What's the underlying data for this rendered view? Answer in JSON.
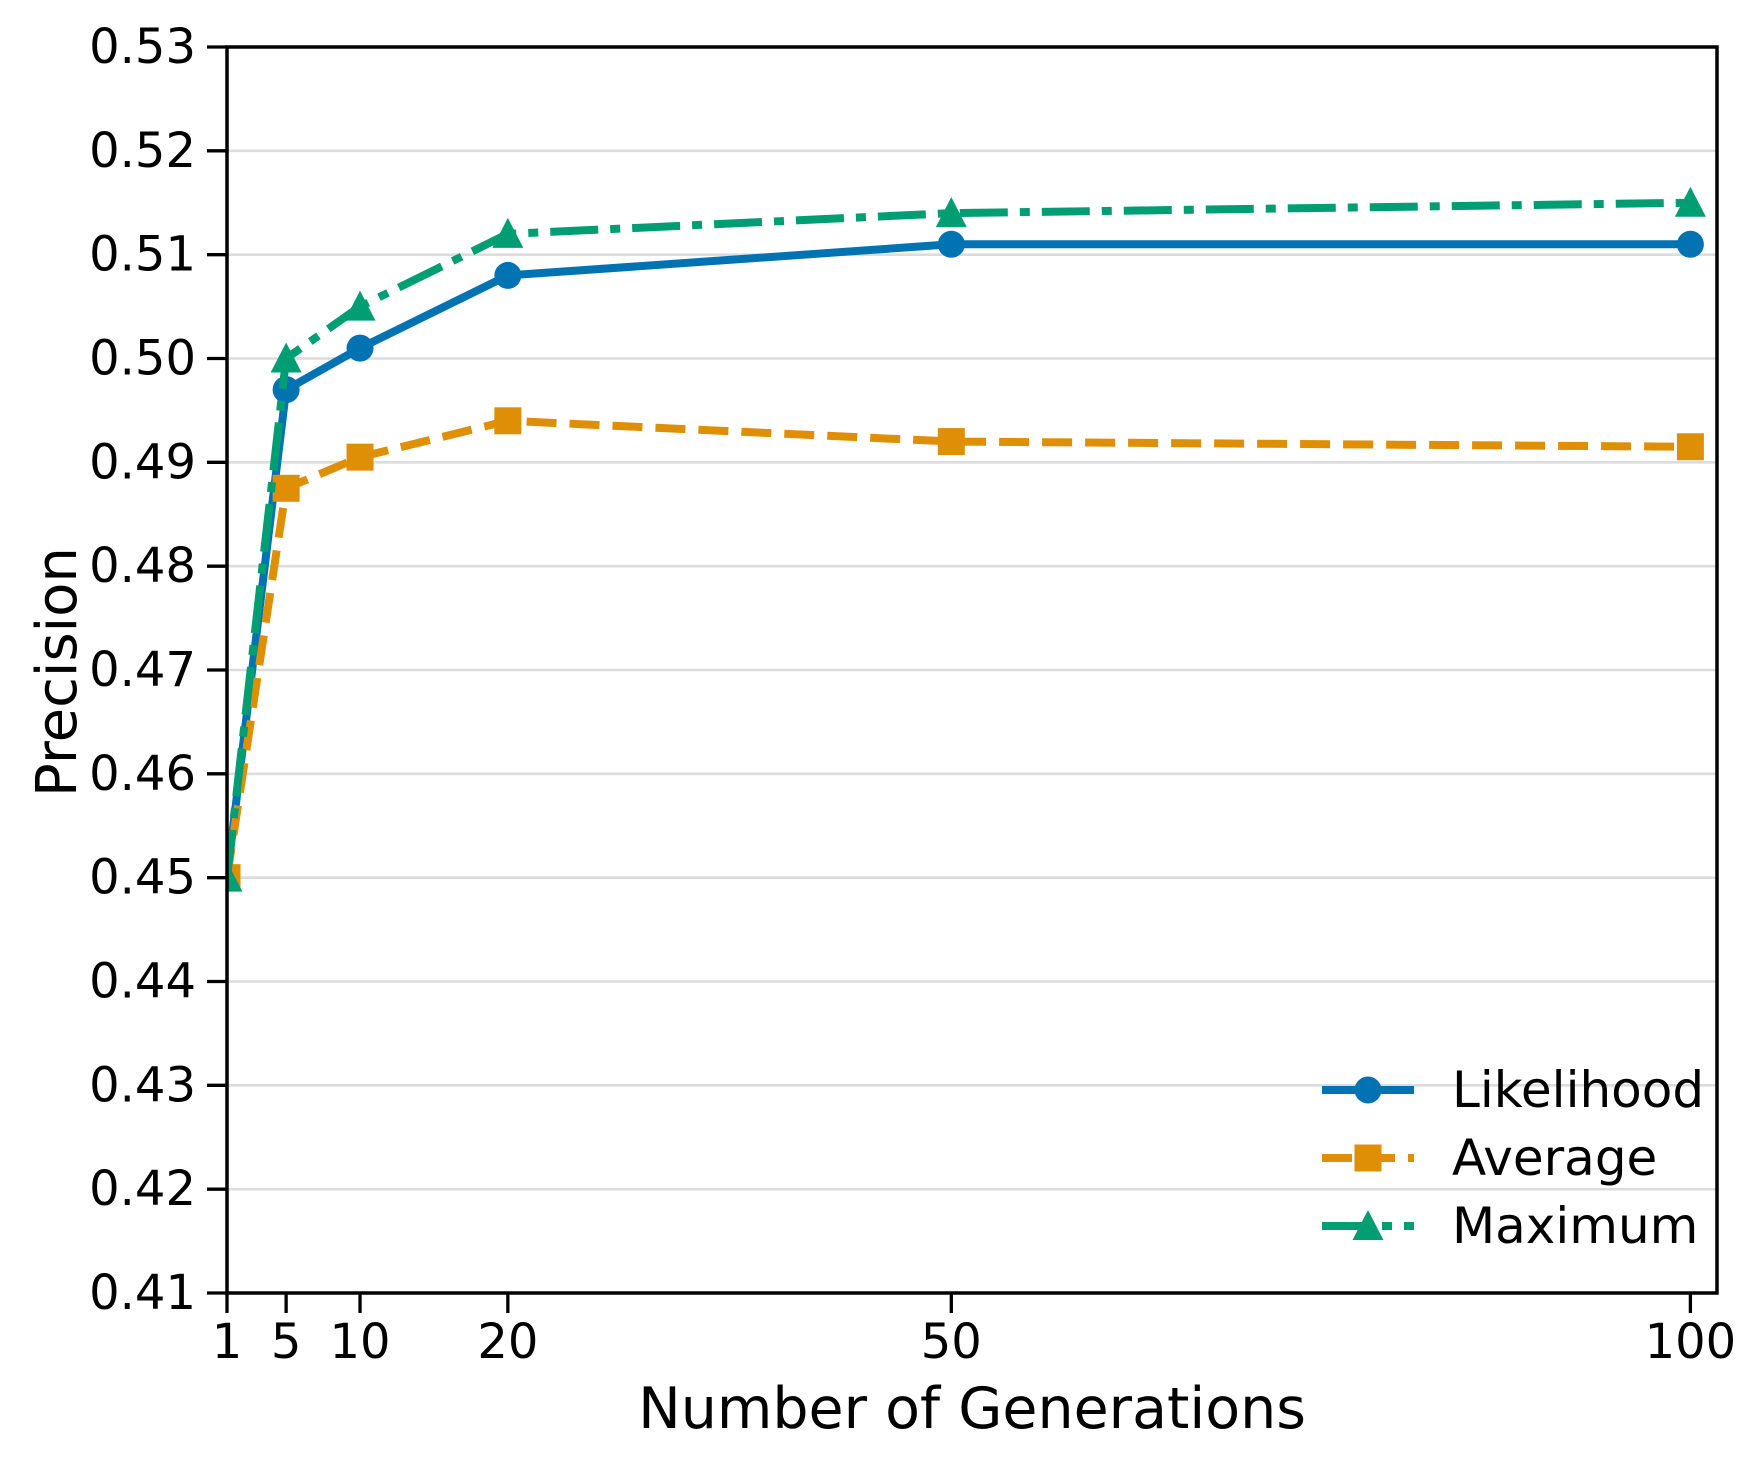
{
  "chart_data": {
    "type": "line",
    "title": "",
    "xlabel": "Number of Generations",
    "ylabel": "Precision",
    "x": [
      1,
      5,
      10,
      20,
      50,
      100
    ],
    "series": [
      {
        "name": "Likelihood",
        "color": "#0173b2",
        "linestyle": "solid",
        "marker": "circle",
        "values": [
          0.45,
          0.497,
          0.501,
          0.508,
          0.511,
          0.511
        ]
      },
      {
        "name": "Average",
        "color": "#de8f05",
        "linestyle": "dashed",
        "marker": "square",
        "values": [
          0.45,
          0.4875,
          0.4905,
          0.494,
          0.492,
          0.4915
        ]
      },
      {
        "name": "Maximum",
        "color": "#029e73",
        "linestyle": "dashdot",
        "marker": "triangle",
        "values": [
          0.45,
          0.5,
          0.505,
          0.512,
          0.514,
          0.515
        ]
      }
    ],
    "xlim": [
      1,
      101.8
    ],
    "ylim": [
      0.41,
      0.53
    ],
    "x_ticks": {
      "values": [
        1,
        5,
        10,
        20,
        50,
        100
      ],
      "labels": [
        "1",
        "5",
        "10",
        "20",
        "50",
        "100"
      ]
    },
    "y_ticks": {
      "values": [
        0.41,
        0.42,
        0.43,
        0.44,
        0.45,
        0.46,
        0.47,
        0.48,
        0.49,
        0.5,
        0.51,
        0.52,
        0.53
      ],
      "labels": [
        "0.41",
        "0.42",
        "0.43",
        "0.44",
        "0.45",
        "0.46",
        "0.47",
        "0.48",
        "0.49",
        "0.50",
        "0.51",
        "0.52",
        "0.53"
      ]
    },
    "grid": "horizontal",
    "grid_color": "#dcdcdc",
    "spine_color": "#000000",
    "text_color": "#000000",
    "legend": {
      "position": "lower right",
      "frame": false
    }
  }
}
